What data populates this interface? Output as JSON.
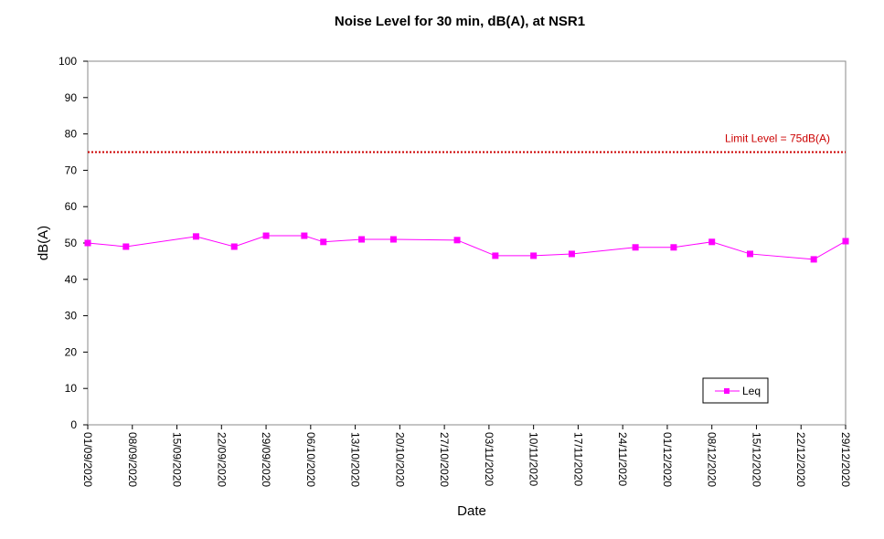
{
  "chart_data": {
    "type": "line",
    "title": "Noise Level for 30 min, dB(A), at NSR1",
    "xlabel": "Date",
    "ylabel": "dB(A)",
    "ylim": [
      0,
      100
    ],
    "yticks": [
      0,
      10,
      20,
      30,
      40,
      50,
      60,
      70,
      80,
      90,
      100
    ],
    "xlim": [
      "2020-09-01",
      "2020-12-29"
    ],
    "xtick_labels": [
      "01/09/2020",
      "08/09/2020",
      "15/09/2020",
      "22/09/2020",
      "29/09/2020",
      "06/10/2020",
      "13/10/2020",
      "20/10/2020",
      "27/10/2020",
      "03/11/2020",
      "10/11/2020",
      "17/11/2020",
      "24/11/2020",
      "01/12/2020",
      "08/12/2020",
      "15/12/2020",
      "22/12/2020",
      "29/12/2020"
    ],
    "series": [
      {
        "name": "Leq",
        "color": "#ff00ff",
        "marker": "square",
        "points": [
          {
            "x": "2020-09-01",
            "y": 50.0
          },
          {
            "x": "2020-09-07",
            "y": 49.0
          },
          {
            "x": "2020-09-18",
            "y": 51.8
          },
          {
            "x": "2020-09-24",
            "y": 49.0
          },
          {
            "x": "2020-09-29",
            "y": 52.0
          },
          {
            "x": "2020-10-05",
            "y": 52.0
          },
          {
            "x": "2020-10-08",
            "y": 50.3
          },
          {
            "x": "2020-10-14",
            "y": 51.0
          },
          {
            "x": "2020-10-19",
            "y": 51.0
          },
          {
            "x": "2020-10-29",
            "y": 50.8
          },
          {
            "x": "2020-11-04",
            "y": 46.5
          },
          {
            "x": "2020-11-10",
            "y": 46.5
          },
          {
            "x": "2020-11-16",
            "y": 47.0
          },
          {
            "x": "2020-11-26",
            "y": 48.8
          },
          {
            "x": "2020-12-02",
            "y": 48.8
          },
          {
            "x": "2020-12-08",
            "y": 50.3
          },
          {
            "x": "2020-12-14",
            "y": 47.0
          },
          {
            "x": "2020-12-24",
            "y": 45.5
          },
          {
            "x": "2020-12-29",
            "y": 50.5
          }
        ]
      }
    ],
    "reference_line": {
      "label": "Limit Level  = 75dB(A)",
      "y": 75,
      "color": "#cc0000",
      "style": "dotted"
    },
    "legend": {
      "position": "bottom-right",
      "entries": [
        "Leq"
      ]
    },
    "grid": false
  }
}
